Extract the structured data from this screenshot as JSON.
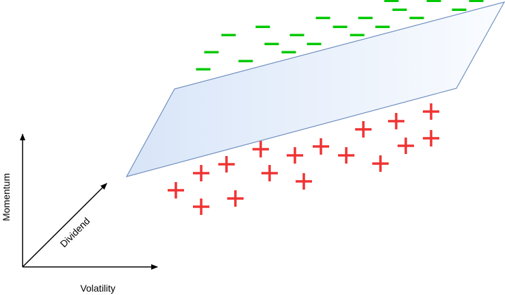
{
  "axes": {
    "y_label": "Momentum",
    "x_label": "Volatility",
    "z_label": "Dividend"
  },
  "colors": {
    "negative": "#00c800",
    "positive": "#f03232",
    "plane_stroke": "#6f8fbf",
    "plane_fill_start": "#dce8f8",
    "plane_fill_end": "#f8fbff"
  },
  "classes": {
    "negative_symbol": "minus",
    "positive_symbol": "plus"
  }
}
